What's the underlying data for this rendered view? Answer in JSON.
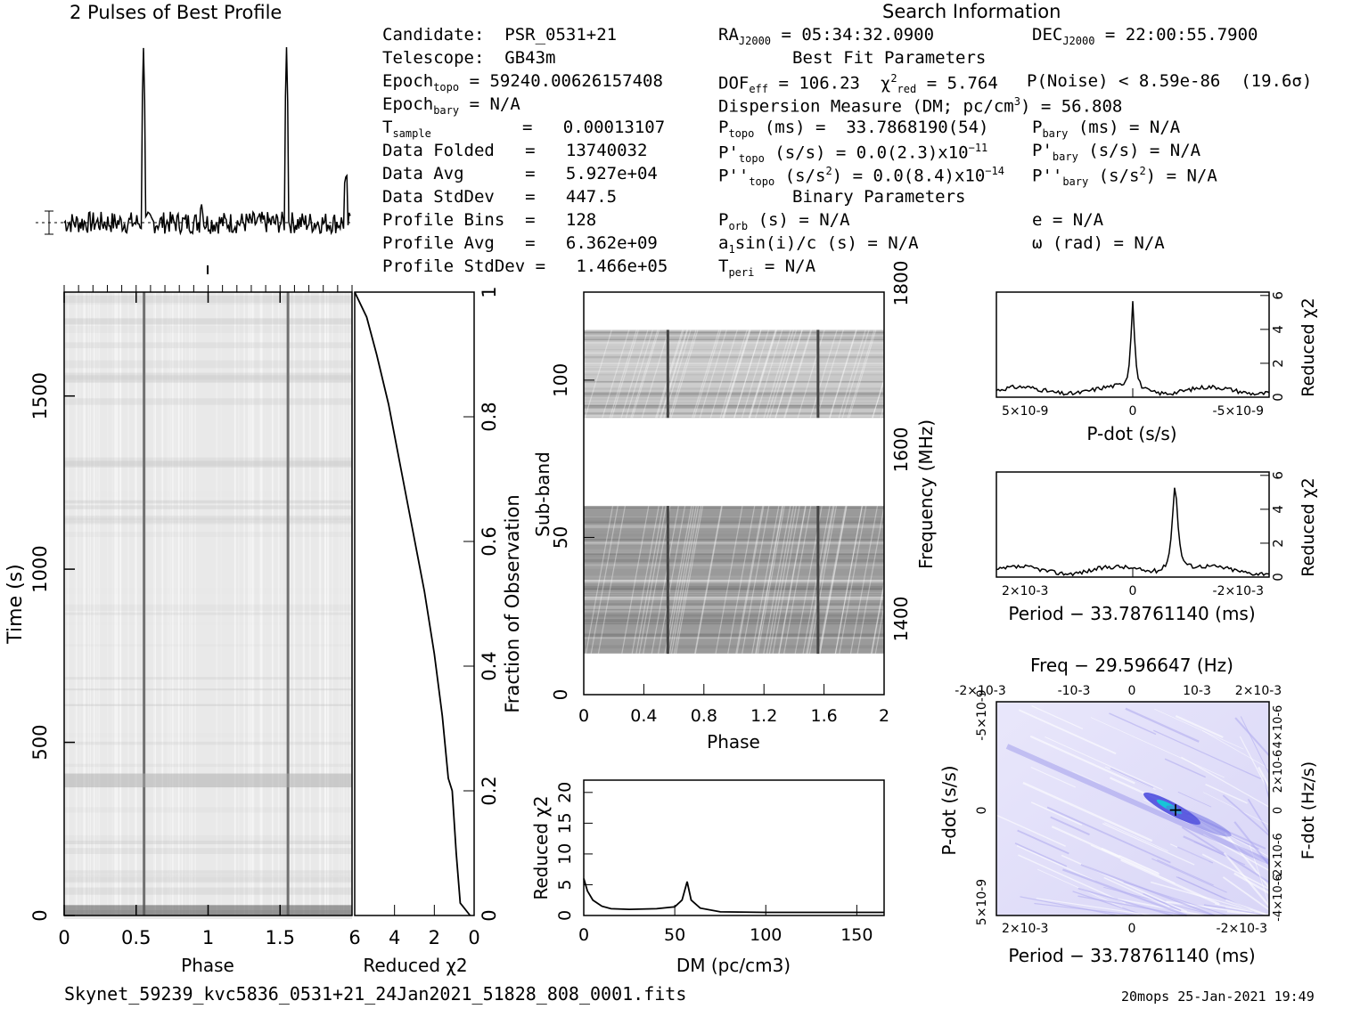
{
  "chart_data": [
    {
      "type": "line",
      "id": "profile",
      "title": "2 Pulses of Best Profile",
      "description": "folded pulse profile",
      "peaks_phase": [
        0.555,
        1.555
      ],
      "baseline_level": 0.0,
      "peak_level": 1.0
    },
    {
      "type": "heatmap",
      "id": "time-phase",
      "xlabel": "Phase",
      "ylabel": "Time (s)",
      "xlim": [
        0,
        2
      ],
      "ylim": [
        0,
        1800
      ],
      "xticks": [
        "0",
        "0.5",
        "1",
        "1.5"
      ],
      "yticks": [
        "0",
        "500",
        "1000",
        "1500"
      ]
    },
    {
      "type": "line",
      "id": "chi2-vs-time",
      "xlabel": "Reduced χ2",
      "ylabel_right": "Fraction of Observation",
      "xticks": [
        "6",
        "4",
        "2",
        "0"
      ],
      "yticks": [
        "0",
        "0.2",
        "0.4",
        "0.6",
        "0.8",
        "1"
      ],
      "x_reversed": true,
      "points": [
        [
          0.2,
          0
        ],
        [
          0.7,
          0.02
        ],
        [
          0.9,
          0.1
        ],
        [
          1.1,
          0.2
        ],
        [
          1.3,
          0.22
        ],
        [
          1.6,
          0.32
        ],
        [
          2.0,
          0.42
        ],
        [
          2.5,
          0.52
        ],
        [
          3.1,
          0.62
        ],
        [
          3.7,
          0.72
        ],
        [
          4.3,
          0.82
        ],
        [
          4.9,
          0.9
        ],
        [
          5.4,
          0.96
        ],
        [
          6.0,
          1.0
        ]
      ]
    },
    {
      "type": "heatmap",
      "id": "subband-phase",
      "xlabel": "Phase",
      "ylabel": "Sub-band",
      "ylabel_right": "Frequency (MHz)",
      "xlim": [
        0,
        2
      ],
      "ylim": [
        0,
        128
      ],
      "xticks": [
        "0",
        "0.4",
        "0.8",
        "1.2",
        "1.6",
        "2"
      ],
      "yticks": [
        "0",
        "50",
        "100"
      ],
      "freq_ticks": [
        "1400",
        "1600",
        "1800"
      ],
      "data_bands": [
        [
          13,
          60
        ],
        [
          88,
          116
        ]
      ]
    },
    {
      "type": "line",
      "id": "dm-chi2",
      "xlabel": "DM (pc/cm3)",
      "ylabel": "Reduced χ2",
      "xlim": [
        0,
        165
      ],
      "ylim": [
        0,
        22
      ],
      "xticks": [
        "0",
        "50",
        "100",
        "150"
      ],
      "yticks": [
        "0",
        "5",
        "10",
        "15",
        "20"
      ],
      "points": [
        [
          0,
          6
        ],
        [
          2,
          4
        ],
        [
          5,
          2.5
        ],
        [
          10,
          1.5
        ],
        [
          15,
          1.1
        ],
        [
          25,
          1.0
        ],
        [
          40,
          1.1
        ],
        [
          50,
          1.4
        ],
        [
          54,
          2.5
        ],
        [
          56.8,
          5.5
        ],
        [
          59,
          2.5
        ],
        [
          64,
          1.2
        ],
        [
          75,
          0.6
        ],
        [
          100,
          0.5
        ],
        [
          130,
          0.5
        ],
        [
          165,
          0.5
        ]
      ]
    },
    {
      "type": "line",
      "id": "pdot-chi2",
      "xlabel": "P-dot (s/s)",
      "ylabel_right": "Reduced χ2",
      "xticks": [
        "5×10-9",
        "0",
        "-5×10-9"
      ],
      "yticks": [
        "0",
        "2",
        "4",
        "6"
      ],
      "peak_x": 0,
      "peak_y": 5.8
    },
    {
      "type": "line",
      "id": "period-chi2",
      "xlabel": "Period − 33.78761140 (ms)",
      "ylabel_right": "Reduced χ2",
      "xticks": [
        "2×10-3",
        "0",
        "-2×10-3"
      ],
      "yticks": [
        "0",
        "2",
        "4",
        "6"
      ],
      "peak_x": -0.0008,
      "peak_y": 5.7
    },
    {
      "type": "heatmap",
      "id": "p-pdot",
      "title": "Freq − 29.596647 (Hz)",
      "xlabel": "Period − 33.78761140 (ms)",
      "ylabel": "P-dot (s/s)",
      "ylabel_right": "F-dot (Hz/s)",
      "xticks": [
        "2×10-3",
        "0",
        "-2×10-3"
      ],
      "top_ticks": [
        "-2×10-3",
        "-10-3",
        "0",
        "10-3",
        "2×10-3"
      ],
      "yticks": [
        "5×10-9",
        "0",
        "-5×10-9"
      ],
      "right_ticks": [
        "-4×10-6",
        "-2×10-6",
        "0",
        "2×10-6",
        "4×10-6"
      ]
    }
  ],
  "header": {
    "search_info": "Search Information",
    "candidate": "Candidate:  PSR_0531+21",
    "telescope": "Telescope:  GB43m",
    "epoch_topo": "= 59240.00626157408",
    "epoch_bary": "= N/A",
    "tsample": "=   0.00013107",
    "data_folded": "Data Folded   =   13740032",
    "data_avg": "Data Avg      =   5.927e+04",
    "data_stddev": "Data StdDev   =   447.5",
    "profile_bins": "Profile Bins  =   128",
    "profile_avg": "Profile Avg   =   6.362e+09",
    "profile_stddev": "Profile StdDev =   1.466e+05",
    "ra": "= 05:34:32.0900",
    "dec": "= 22:00:55.7900",
    "best_fit": "Best Fit Parameters",
    "dof": "= 106.23",
    "chi2red": "= 5.764",
    "pnoise": "P(Noise) < 8.59e-86  (19.6σ)",
    "dm_line": "Dispersion Measure (DM; pc/cm",
    "dm_val": ") = 56.808",
    "ptopo": "(ms) =  33.7868190(54)",
    "pbary": "(ms) = N/A",
    "pdtopo": "(s/s) = 0.0(2.3)x10",
    "pdtopo_exp": "−11",
    "pdbary": "(s/s) = N/A",
    "pddtopo": "= 0.0(8.4)x10",
    "pddtopo_exp": "−14",
    "pddbary": "= N/A",
    "binary": "Binary Parameters",
    "porb": "(s) = N/A",
    "e": "e = N/A",
    "a1": "sin(i)/c (s) = N/A",
    "omega": "ω (rad) = N/A",
    "tperi": "= N/A"
  },
  "footer": {
    "filename": "Skynet_59239_kvc5836_0531+21_24Jan2021_51828_808_0001.fits",
    "stamp": "20mops 25-Jan-2021 19:49"
  }
}
